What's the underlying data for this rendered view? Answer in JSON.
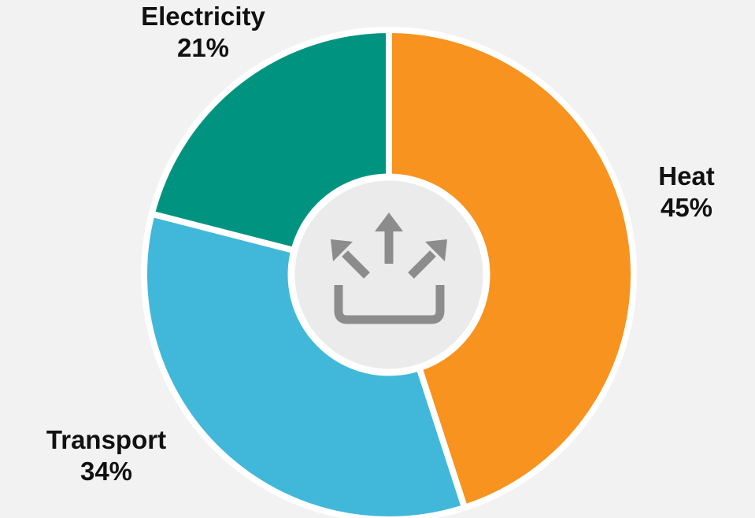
{
  "chart_data": {
    "type": "donut",
    "categories": [
      "Heat",
      "Transport",
      "Electricity"
    ],
    "values": [
      45,
      34,
      21
    ],
    "value_labels": [
      "45%",
      "34%",
      "21%"
    ],
    "colors": [
      "#f7931e",
      "#41b8d9",
      "#009480"
    ]
  }
}
